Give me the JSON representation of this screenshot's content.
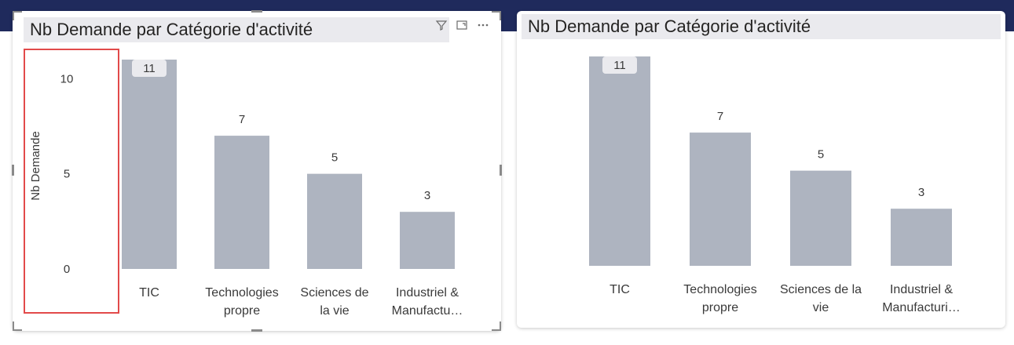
{
  "colors": {
    "bar": "#aeb4c0",
    "frame": "#1f2a5c",
    "highlight": "#e24a4a",
    "title_bg": "#eaeaee"
  },
  "header_icons": [
    "filter-icon",
    "focus-mode-icon",
    "more-options-icon"
  ],
  "left_visual": {
    "title": "Nb Demande par Catégorie d'activité",
    "y_axis_title": "Nb Demande",
    "y_ticks": [
      "0",
      "5",
      "10"
    ],
    "category_lines": [
      [
        "TIC"
      ],
      [
        "Technologies",
        "propre"
      ],
      [
        "Sciences de",
        "la vie"
      ],
      [
        "Industriel &",
        "Manufactu…"
      ]
    ]
  },
  "right_visual": {
    "title": "Nb Demande par Catégorie d'activité",
    "category_lines": [
      [
        "TIC"
      ],
      [
        "Technologies",
        "propre"
      ],
      [
        "Sciences de la",
        "vie"
      ],
      [
        "Industriel &",
        "Manufacturi…"
      ]
    ]
  },
  "chart_data": [
    {
      "type": "bar",
      "title": "Nb Demande par Catégorie d'activité",
      "categories": [
        "TIC",
        "Technologies propre",
        "Sciences de la vie",
        "Industriel & Manufactu…"
      ],
      "values": [
        11,
        7,
        5,
        3
      ],
      "ylabel": "Nb Demande",
      "ylim": [
        0,
        11
      ],
      "y_ticks": [
        0,
        5,
        10
      ],
      "data_labels": [
        "11",
        "7",
        "5",
        "3"
      ]
    },
    {
      "type": "bar",
      "title": "Nb Demande par Catégorie d'activité",
      "categories": [
        "TIC",
        "Technologies propre",
        "Sciences de la vie",
        "Industriel & Manufacturi…"
      ],
      "values": [
        11,
        7,
        5,
        3
      ],
      "ylim": [
        0,
        11
      ],
      "data_labels": [
        "11",
        "7",
        "5",
        "3"
      ]
    }
  ]
}
